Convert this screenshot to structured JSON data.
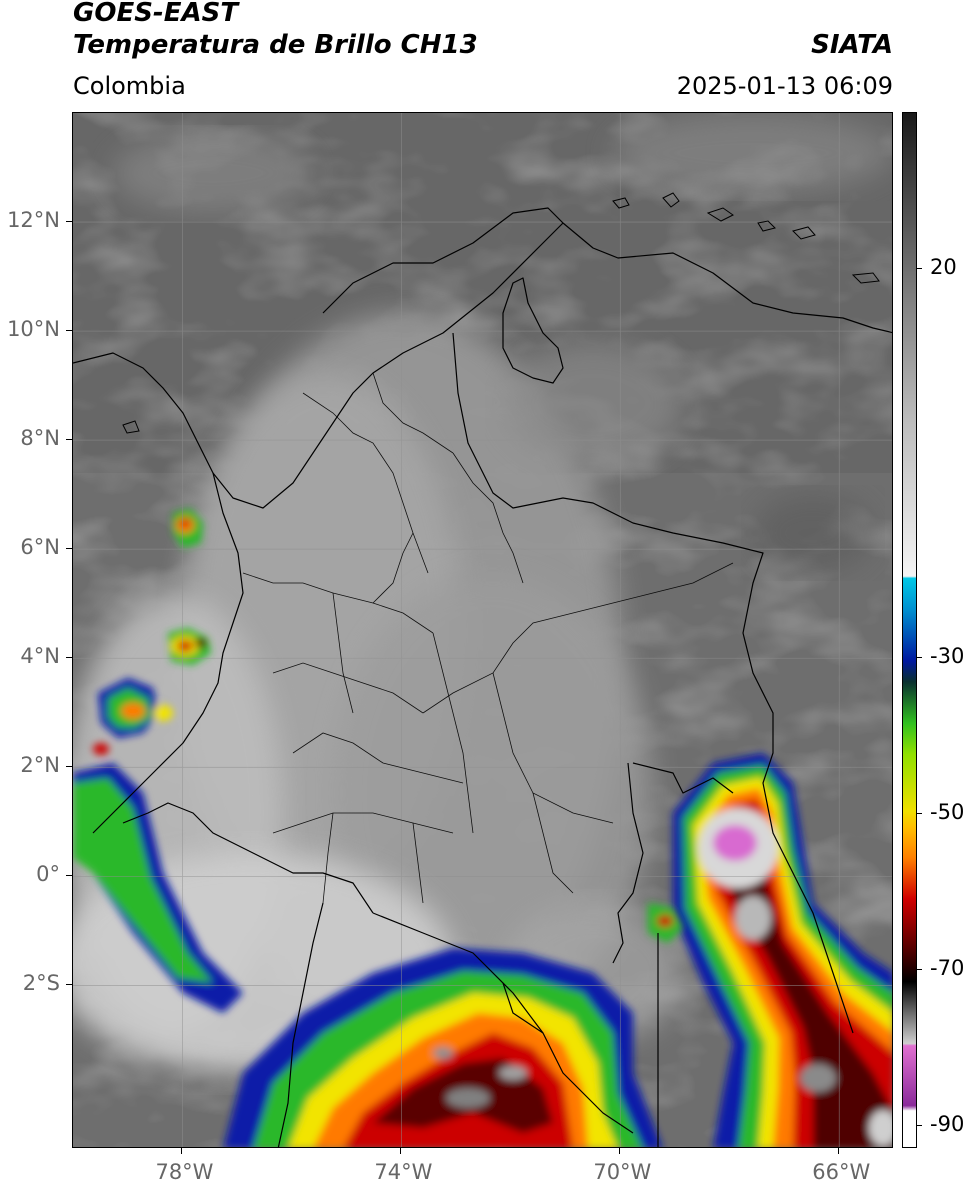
{
  "header": {
    "satellite": "GOES-EAST",
    "product": "Temperatura de Brillo CH13",
    "region": "Colombia",
    "agency": "SIATA",
    "datetime": "2025-01-13 06:09"
  },
  "map": {
    "lon_range": [
      -80,
      -65
    ],
    "lat_range": [
      -5,
      14
    ],
    "lat_ticks": [
      {
        "value": 12,
        "label": "12°N"
      },
      {
        "value": 10,
        "label": "10°N"
      },
      {
        "value": 8,
        "label": "8°N"
      },
      {
        "value": 6,
        "label": "6°N"
      },
      {
        "value": 4,
        "label": "4°N"
      },
      {
        "value": 2,
        "label": "2°N"
      },
      {
        "value": 0,
        "label": "0°"
      },
      {
        "value": -2,
        "label": "2°S"
      }
    ],
    "lon_ticks": [
      {
        "value": -78,
        "label": "78°W"
      },
      {
        "value": -74,
        "label": "74°W"
      },
      {
        "value": -70,
        "label": "70°W"
      },
      {
        "value": -66,
        "label": "66°W"
      }
    ],
    "grid": true
  },
  "colorbar": {
    "ticks": [
      {
        "value": 20,
        "label": "20"
      },
      {
        "value": -30,
        "label": "-30"
      },
      {
        "value": -50,
        "label": "-50"
      },
      {
        "value": -70,
        "label": "-70"
      },
      {
        "value": -90,
        "label": "-90"
      }
    ],
    "colors": {
      "warm_dark": "#1a1a1a",
      "warm_gray": "#808080",
      "cold_white": "#f4f4f4",
      "cyan": "#00c8e6",
      "blue": "#0018a0",
      "green": "#30c020",
      "yellow": "#f0e000",
      "orange": "#ff8000",
      "red": "#d00000",
      "dark_red": "#500000",
      "black": "#000000",
      "pink": "#e070d0",
      "purple": "#8a2a9a"
    }
  }
}
